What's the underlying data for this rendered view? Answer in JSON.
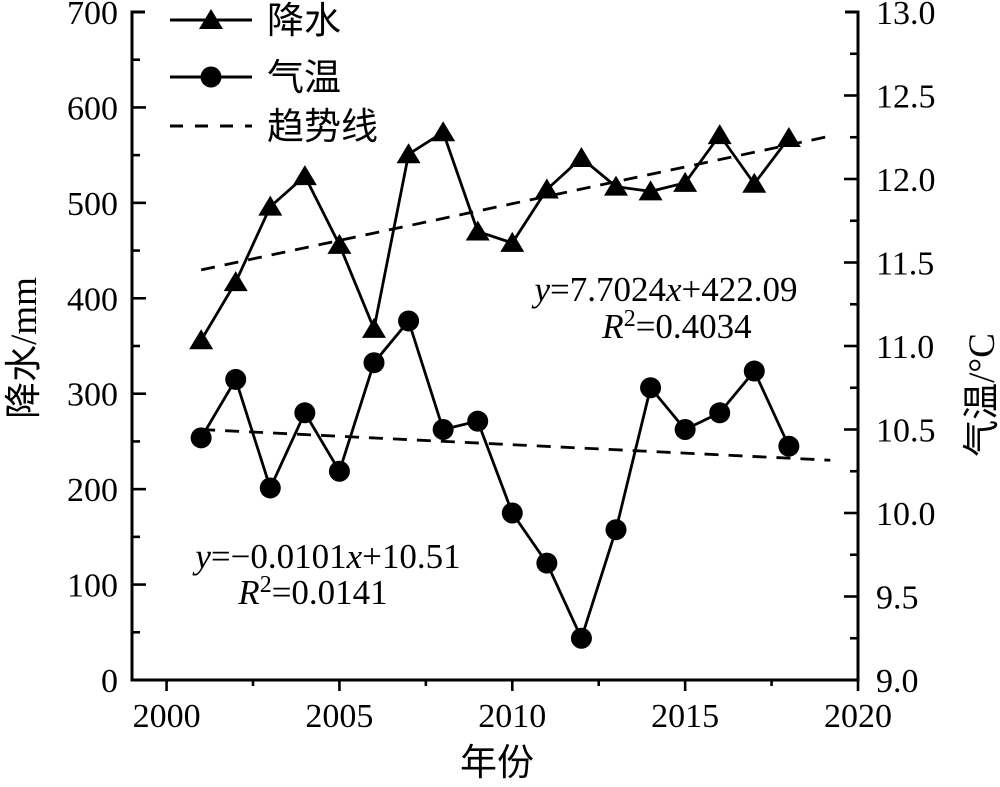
{
  "figure": {
    "background": "#ffffff",
    "ink_color": "#000000"
  },
  "chart_data": {
    "type": "line",
    "x": [
      2001,
      2002,
      2003,
      2004,
      2005,
      2006,
      2007,
      2008,
      2009,
      2010,
      2011,
      2012,
      2013,
      2014,
      2015,
      2016,
      2017,
      2018
    ],
    "series": [
      {
        "key": "precipitation",
        "name": "降水",
        "axis": "left",
        "marker": "triangle",
        "unit": "mm",
        "values": [
          356,
          417,
          496,
          528,
          456,
          368,
          551,
          574,
          470,
          458,
          514,
          547,
          517,
          512,
          521,
          571,
          520,
          568
        ]
      },
      {
        "key": "temperature",
        "name": "气温",
        "axis": "right",
        "marker": "circle",
        "unit": "°C",
        "values": [
          10.45,
          10.8,
          10.15,
          10.6,
          10.25,
          10.9,
          11.15,
          10.5,
          10.55,
          10.0,
          9.7,
          9.25,
          9.9,
          10.75,
          10.5,
          10.6,
          10.85,
          10.4
        ]
      }
    ],
    "trendlines": [
      {
        "key": "precipitation-trend",
        "series": "降水",
        "axis": "left",
        "slope": 7.7024,
        "intercept": 422.09,
        "r2": 0.4034,
        "x_origin": 2000,
        "x_range": [
          2001,
          2019.2
        ],
        "equation_label": "y=7.7024x+422.09",
        "r2_label": "R²=0.4034",
        "equation_parts": [
          {
            "t": "y",
            "i": true
          },
          {
            "t": "=7.7024"
          },
          {
            "t": "x",
            "i": true
          },
          {
            "t": "+422.09"
          }
        ],
        "r2_parts": [
          {
            "t": "R",
            "i": true
          },
          {
            "t": "2",
            "sup": true
          },
          {
            "t": "=0.4034"
          }
        ]
      },
      {
        "key": "temperature-trend",
        "series": "气温",
        "axis": "right",
        "slope": -0.0101,
        "intercept": 10.51,
        "r2": 0.0141,
        "x_origin": 2000,
        "x_range": [
          2001,
          2019.2
        ],
        "equation_label": "y=−0.0101x+10.51",
        "r2_label": "R²=0.0141",
        "equation_parts": [
          {
            "t": "y",
            "i": true
          },
          {
            "t": "=−0.0101"
          },
          {
            "t": "x",
            "i": true
          },
          {
            "t": "+10.51"
          }
        ],
        "r2_parts": [
          {
            "t": "R",
            "i": true
          },
          {
            "t": "2",
            "sup": true
          },
          {
            "t": "=0.0141"
          }
        ]
      }
    ],
    "axes": {
      "x": {
        "label": "年份",
        "min": 1999,
        "max": 2020,
        "major_ticks": [
          2000,
          2005,
          2010,
          2015,
          2020
        ],
        "minor_step": 2.5
      },
      "left_y": {
        "label": "降水/mm",
        "min": 0,
        "max": 700,
        "major_step": 100,
        "minor_step": 50,
        "decimals": 0
      },
      "right_y": {
        "label": "气温/°C",
        "min": 9.0,
        "max": 13.0,
        "major_step": 0.5,
        "minor_step": 0.25,
        "decimals": 1
      }
    },
    "legend": [
      "降水",
      "气温",
      "趋势线"
    ],
    "legend_position": "upper-left",
    "grid": false
  }
}
